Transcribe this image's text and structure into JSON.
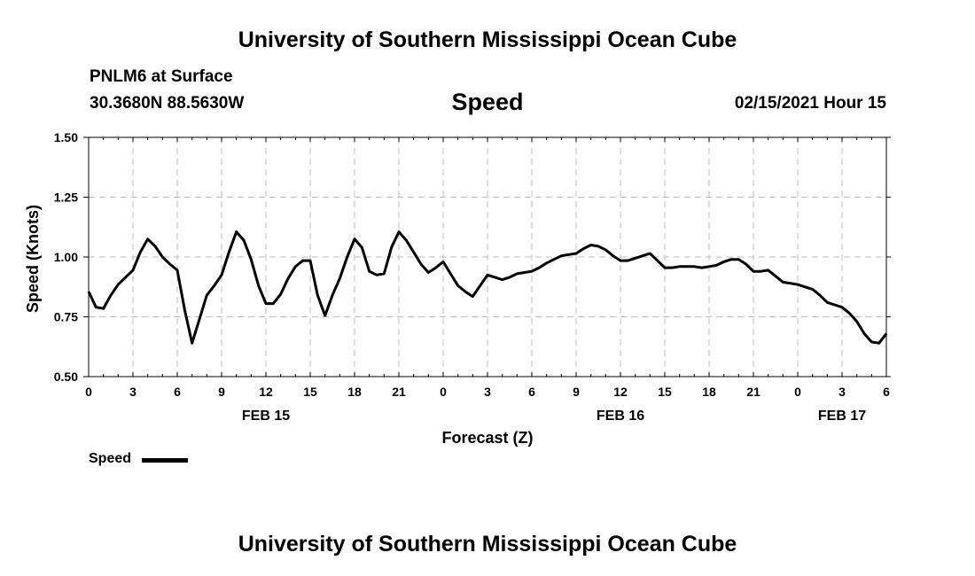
{
  "header": {
    "title": "University of Southern Mississippi Ocean Cube",
    "station": "PNLM6 at Surface",
    "coordinates": "30.3680N 88.5630W",
    "variable": "Speed",
    "timestamp": "02/15/2021 Hour 15"
  },
  "footer": {
    "title": "University of Southern Mississippi Ocean Cube"
  },
  "legend": {
    "label": "Speed",
    "color": "#000000"
  },
  "chart_data": {
    "type": "line",
    "title": "Speed",
    "xlabel": "Forecast (Z)",
    "ylabel": "Speed (Knots)",
    "xlim": [
      0,
      54
    ],
    "ylim": [
      0.5,
      1.5
    ],
    "grid": true,
    "y_ticks": [
      0.5,
      0.75,
      1.0,
      1.25,
      1.5
    ],
    "y_tick_labels": [
      "0.50",
      "0.75",
      "1.00",
      "1.25",
      "1.50"
    ],
    "x_ticks": [
      0,
      3,
      6,
      9,
      12,
      15,
      18,
      21,
      24,
      27,
      30,
      33,
      36,
      39,
      42,
      45,
      48,
      51,
      54
    ],
    "x_tick_labels": [
      "0",
      "3",
      "6",
      "9",
      "12",
      "15",
      "18",
      "21",
      "0",
      "3",
      "6",
      "9",
      "12",
      "15",
      "18",
      "21",
      "0",
      "3",
      "6"
    ],
    "date_labels": [
      {
        "x": 12,
        "label": "FEB 15"
      },
      {
        "x": 36,
        "label": "FEB 16"
      },
      {
        "x": 51,
        "label": "FEB 17"
      }
    ],
    "series": [
      {
        "name": "Speed",
        "color": "#000000",
        "x": [
          0,
          0.5,
          1,
          1.5,
          2,
          2.5,
          3,
          3.5,
          4,
          4.5,
          5,
          5.5,
          6,
          6.5,
          7,
          7.5,
          8,
          8.5,
          9,
          9.5,
          10,
          10.5,
          11,
          11.5,
          12,
          12.5,
          13,
          13.5,
          14,
          14.5,
          15,
          15.5,
          16,
          16.5,
          17,
          17.5,
          18,
          18.5,
          19,
          19.5,
          20,
          20.5,
          21,
          21.5,
          22,
          22.5,
          23,
          23.5,
          24,
          24.5,
          25,
          25.5,
          26,
          26.5,
          27,
          27.5,
          28,
          28.5,
          29,
          29.5,
          30,
          30.5,
          31,
          31.5,
          32,
          32.5,
          33,
          33.5,
          34,
          34.5,
          35,
          35.5,
          36,
          36.5,
          37,
          37.5,
          38,
          38.5,
          39,
          39.5,
          40,
          40.5,
          41,
          41.5,
          42,
          42.5,
          43,
          43.5,
          44,
          44.5,
          45,
          45.5,
          46,
          46.5,
          47,
          47.5,
          48,
          48.5,
          49,
          49.5,
          50,
          50.5,
          51,
          51.5,
          52,
          52.5,
          53,
          53.5,
          54
        ],
        "values": [
          0.855,
          0.79,
          0.785,
          0.84,
          0.885,
          0.915,
          0.945,
          1.02,
          1.075,
          1.045,
          1.0,
          0.97,
          0.945,
          0.78,
          0.64,
          0.74,
          0.84,
          0.88,
          0.925,
          1.02,
          1.105,
          1.07,
          0.99,
          0.88,
          0.805,
          0.805,
          0.845,
          0.91,
          0.96,
          0.985,
          0.985,
          0.84,
          0.755,
          0.84,
          0.91,
          1.0,
          1.075,
          1.04,
          0.94,
          0.925,
          0.93,
          1.04,
          1.105,
          1.07,
          1.02,
          0.97,
          0.935,
          0.955,
          0.98,
          0.93,
          0.88,
          0.855,
          0.835,
          0.88,
          0.925,
          0.915,
          0.905,
          0.915,
          0.93,
          0.935,
          0.94,
          0.955,
          0.975,
          0.99,
          1.005,
          1.01,
          1.015,
          1.035,
          1.05,
          1.045,
          1.03,
          1.005,
          0.985,
          0.985,
          0.995,
          1.005,
          1.015,
          0.985,
          0.955,
          0.955,
          0.96,
          0.96,
          0.96,
          0.955,
          0.96,
          0.965,
          0.98,
          0.99,
          0.99,
          0.97,
          0.94,
          0.94,
          0.945,
          0.92,
          0.895,
          0.89,
          0.885,
          0.875,
          0.865,
          0.84,
          0.81,
          0.8,
          0.79,
          0.765,
          0.73,
          0.68,
          0.645,
          0.64,
          0.68
        ]
      }
    ]
  }
}
